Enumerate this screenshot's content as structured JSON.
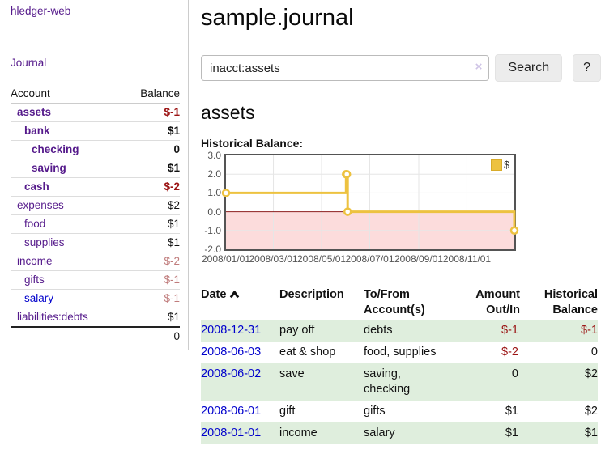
{
  "sidebar": {
    "app_title": "hledger-web",
    "journal_link": "Journal",
    "table": {
      "account_header": "Account",
      "balance_header": "Balance",
      "total": "0"
    },
    "accounts": [
      {
        "name": "assets",
        "depth": 1,
        "bold": true,
        "link_tone": "purple",
        "balance": "$-1",
        "balance_tone": "negative"
      },
      {
        "name": "bank",
        "depth": 2,
        "bold": true,
        "link_tone": "purple",
        "balance": "$1",
        "balance_tone": "normal"
      },
      {
        "name": "checking",
        "depth": 3,
        "bold": true,
        "link_tone": "purple",
        "balance": "0",
        "balance_tone": "normal"
      },
      {
        "name": "saving",
        "depth": 3,
        "bold": true,
        "link_tone": "purple",
        "balance": "$1",
        "balance_tone": "normal"
      },
      {
        "name": "cash",
        "depth": 2,
        "bold": true,
        "link_tone": "purple",
        "balance": "$-2",
        "balance_tone": "negative"
      },
      {
        "name": "expenses",
        "depth": 1,
        "bold": false,
        "link_tone": "purple",
        "balance": "$2",
        "balance_tone": "normal"
      },
      {
        "name": "food",
        "depth": 2,
        "bold": false,
        "link_tone": "purple",
        "balance": "$1",
        "balance_tone": "normal"
      },
      {
        "name": "supplies",
        "depth": 2,
        "bold": false,
        "link_tone": "purple",
        "balance": "$1",
        "balance_tone": "normal"
      },
      {
        "name": "income",
        "depth": 1,
        "bold": false,
        "link_tone": "purple",
        "balance": "$-2",
        "balance_tone": "negative-faded"
      },
      {
        "name": "gifts",
        "depth": 2,
        "bold": false,
        "link_tone": "purple",
        "balance": "$-1",
        "balance_tone": "negative-faded"
      },
      {
        "name": "salary",
        "depth": 2,
        "bold": false,
        "link_tone": "blue",
        "balance": "$-1",
        "balance_tone": "negative-faded"
      },
      {
        "name": "liabilities:debts",
        "depth": 1,
        "bold": false,
        "link_tone": "purple",
        "balance": "$1",
        "balance_tone": "normal"
      }
    ]
  },
  "main": {
    "title": "sample.journal",
    "search": {
      "value": "inacct:assets",
      "clear_icon": "×",
      "button_label": "Search",
      "help_label": "?"
    },
    "account_heading": "assets",
    "chart_label": "Historical Balance:"
  },
  "chart_data": {
    "type": "line",
    "title": "Historical Balance",
    "step": true,
    "x_range": [
      "2008-01-01",
      "2008-12-31"
    ],
    "ylim": [
      -2,
      3
    ],
    "y_ticks": [
      3.0,
      2.0,
      1.0,
      0.0,
      -1.0,
      -2.0
    ],
    "x_ticks": [
      "2008/01/01",
      "2008/03/01",
      "2008/05/01",
      "2008/07/01",
      "2008/09/01",
      "2008/11/01"
    ],
    "series": [
      {
        "name": "$",
        "color": "#edc240",
        "points": [
          [
            "2008-01-01",
            1
          ],
          [
            "2008-06-01",
            2
          ],
          [
            "2008-06-02",
            2
          ],
          [
            "2008-06-03",
            0
          ],
          [
            "2008-12-31",
            -1
          ]
        ]
      }
    ],
    "legend": {
      "label": "$",
      "swatch_color": "#edc240",
      "position": "top-right"
    },
    "grid": true,
    "grid_color": "#e6e6e6",
    "negative_region_color": "#fcdcdc",
    "zero_line_color": "#8b1d1d"
  },
  "register": {
    "headers": {
      "date": "Date",
      "description": "Description",
      "accounts": "To/From Account(s)",
      "amount": "Amount Out/In",
      "balance": "Historical Balance"
    },
    "rows": [
      {
        "date": "2008-12-31",
        "description": "pay off",
        "accounts": "debts",
        "amount": "$-1",
        "amount_negative": true,
        "balance": "$-1",
        "balance_negative": true
      },
      {
        "date": "2008-06-03",
        "description": "eat & shop",
        "accounts": "food, supplies",
        "amount": "$-2",
        "amount_negative": true,
        "balance": "0",
        "balance_negative": false
      },
      {
        "date": "2008-06-02",
        "description": "save",
        "accounts": "saving, checking",
        "amount": "0",
        "amount_negative": false,
        "balance": "$2",
        "balance_negative": false
      },
      {
        "date": "2008-06-01",
        "description": "gift",
        "accounts": "gifts",
        "amount": "$1",
        "amount_negative": false,
        "balance": "$2",
        "balance_negative": false
      },
      {
        "date": "2008-01-01",
        "description": "income",
        "accounts": "salary",
        "amount": "$1",
        "amount_negative": false,
        "balance": "$1",
        "balance_negative": false
      }
    ]
  },
  "colors": {
    "link_purple": "#551a8b",
    "link_blue": "#0000cc",
    "negative": "#9b1313",
    "negative_faded": "#c07c7c",
    "row_green": "#dfeedd",
    "accent_gold": "#edc240"
  }
}
